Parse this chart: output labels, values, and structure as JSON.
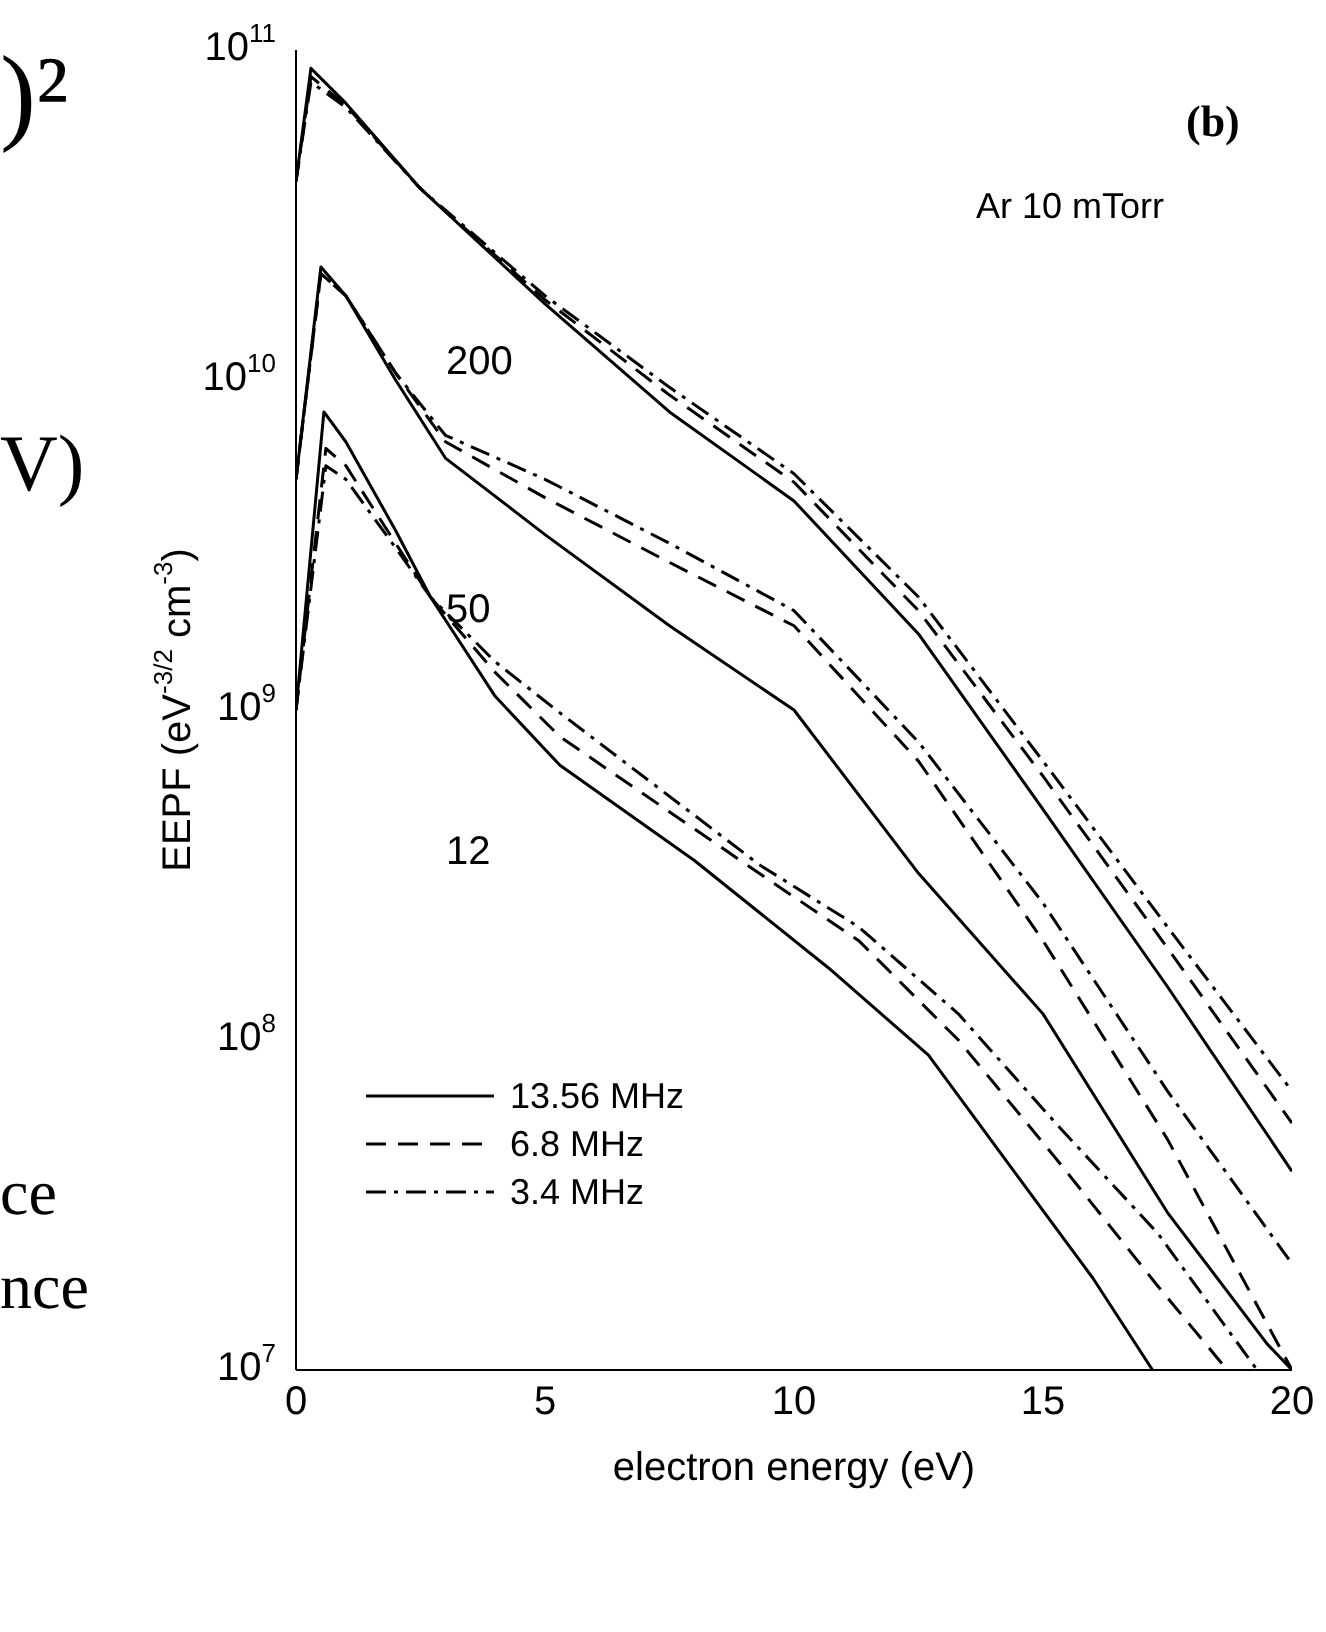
{
  "chart_data": {
    "type": "line",
    "xlabel": "electron energy (eV)",
    "ylabel": "EEPF (eV$^{-3/2}$ cm$^{-3}$)",
    "annotations": [
      "(b)",
      "Ar 10 mTorr",
      ")²",
      "V)",
      "ce",
      "nce",
      "200",
      "50",
      "12"
    ],
    "log": "y",
    "xlim": [
      0,
      20
    ],
    "xticks": [
      0,
      5,
      10,
      15,
      20
    ],
    "ylim": [
      10000000.0,
      100000000000.0
    ],
    "yticks": [
      {
        "value": 10000000.0,
        "label": "10$^{7}$"
      },
      {
        "value": 100000000.0,
        "label": "10$^{8}$"
      },
      {
        "value": 1000000000.0,
        "label": "10$^{9}$"
      },
      {
        "value": 10000000000.0,
        "label": "10$^{10}$"
      },
      {
        "value": 100000000000.0,
        "label": "10$^{11}$"
      }
    ],
    "legend": "bottom left",
    "grid": false,
    "series": [
      {
        "name": "13.56 MHz",
        "color": "#000000",
        "line_style": "solid",
        "x": [
          0,
          0.3,
          1,
          2.5,
          5,
          7.5,
          10,
          12.5,
          15,
          17.5,
          20
        ],
        "values": [
          40000000000.0,
          88000000000.0,
          69000000000.0,
          38000000000.0,
          17000000000.0,
          8000000000.0,
          4300000000.0,
          1700000000.0,
          500000000.0,
          145000000.0,
          40000000.0
        ]
      },
      {
        "name": "6.8 MHz",
        "color": "#000000",
        "line_style": "dashed",
        "x": [
          0,
          0.3,
          1,
          2.5,
          5,
          7.5,
          10,
          12.5,
          15,
          17.5,
          20
        ],
        "values": [
          40000000000.0,
          83000000000.0,
          68000000000.0,
          38000000000.0,
          17500000000.0,
          9000000000.0,
          4900000000.0,
          2000000000.0,
          630000000.0,
          190000000.0,
          56000000.0
        ]
      },
      {
        "name": "3.4 MHz",
        "color": "#000000",
        "line_style": "dashed-dotted",
        "x": [
          0,
          0.3,
          1,
          2.5,
          5,
          7.5,
          10,
          12.5,
          15,
          17.5,
          20
        ],
        "values": [
          40000000000.0,
          80000000000.0,
          67000000000.0,
          38000000000.0,
          18000000000.0,
          9500000000.0,
          5200000000.0,
          2200000000.0,
          700000000.0,
          220000000.0,
          70000000.0
        ]
      },
      {
        "color": "#000000",
        "line_style": "solid",
        "x": [
          0,
          0.5,
          1,
          2,
          3,
          5,
          7.5,
          10,
          12.5,
          15,
          17.5,
          19.5,
          20
        ],
        "values": [
          5000000000.0,
          22000000000.0,
          18000000000.0,
          10000000000.0,
          5800000000.0,
          3400000000.0,
          1800000000.0,
          1000000000.0,
          320000000.0,
          120000000.0,
          30000000.0,
          12000000.0,
          10000000.0
        ]
      },
      {
        "color": "#000000",
        "line_style": "dashed",
        "x": [
          0,
          0.5,
          1,
          2,
          3,
          5,
          7.5,
          10,
          12.5,
          15,
          17.5,
          20
        ],
        "values": [
          5000000000.0,
          21000000000.0,
          18000000000.0,
          10500000000.0,
          6500000000.0,
          4400000000.0,
          2800000000.0,
          1800000000.0,
          700000000.0,
          200000000.0,
          50000000.0,
          10000000.0
        ]
      },
      {
        "color": "#000000",
        "line_style": "dashed-dotted",
        "x": [
          0,
          0.5,
          1,
          2,
          3,
          5,
          7.5,
          10,
          12.5,
          15,
          17.5,
          20
        ],
        "values": [
          5000000000.0,
          21000000000.0,
          18000000000.0,
          10500000000.0,
          6800000000.0,
          5000000000.0,
          3200000000.0,
          2000000000.0,
          800000000.0,
          260000000.0,
          70000000.0,
          21000000.0
        ]
      },
      {
        "color": "#000000",
        "line_style": "solid",
        "x": [
          0,
          0.56,
          1,
          2,
          2.7,
          4,
          5.3,
          8,
          10.7,
          12.7,
          14.7,
          16,
          17.2
        ],
        "values": [
          1000000000.0,
          8000000000.0,
          6500000000.0,
          3500000000.0,
          2200000000.0,
          1100000000.0,
          680000000.0,
          350000000.0,
          165000000.0,
          90000000.0,
          35000000.0,
          19000000.0,
          10000000.0
        ]
      },
      {
        "color": "#000000",
        "line_style": "dashed",
        "x": [
          0,
          0.6,
          1,
          2,
          2.7,
          4,
          5.3,
          9.3,
          11.3,
          13.3,
          15.3,
          17.3,
          18.7
        ],
        "values": [
          1000000000.0,
          6200000000.0,
          5500000000.0,
          3200000000.0,
          2200000000.0,
          1300000000.0,
          830000000.0,
          320000000.0,
          200000000.0,
          100000000.0,
          43000000.0,
          18000000.0,
          10000000.0
        ]
      },
      {
        "color": "#000000",
        "line_style": "dashed-dotted",
        "x": [
          0,
          0.6,
          1,
          2,
          2.7,
          4,
          5.3,
          9.3,
          11.3,
          13.3,
          15.3,
          17.3,
          19.3
        ],
        "values": [
          1000000000.0,
          5500000000.0,
          5000000000.0,
          3100000000.0,
          2200000000.0,
          1400000000.0,
          980000000.0,
          340000000.0,
          220000000.0,
          120000000.0,
          55000000.0,
          26000000.0,
          10000000.0
        ]
      }
    ]
  }
}
